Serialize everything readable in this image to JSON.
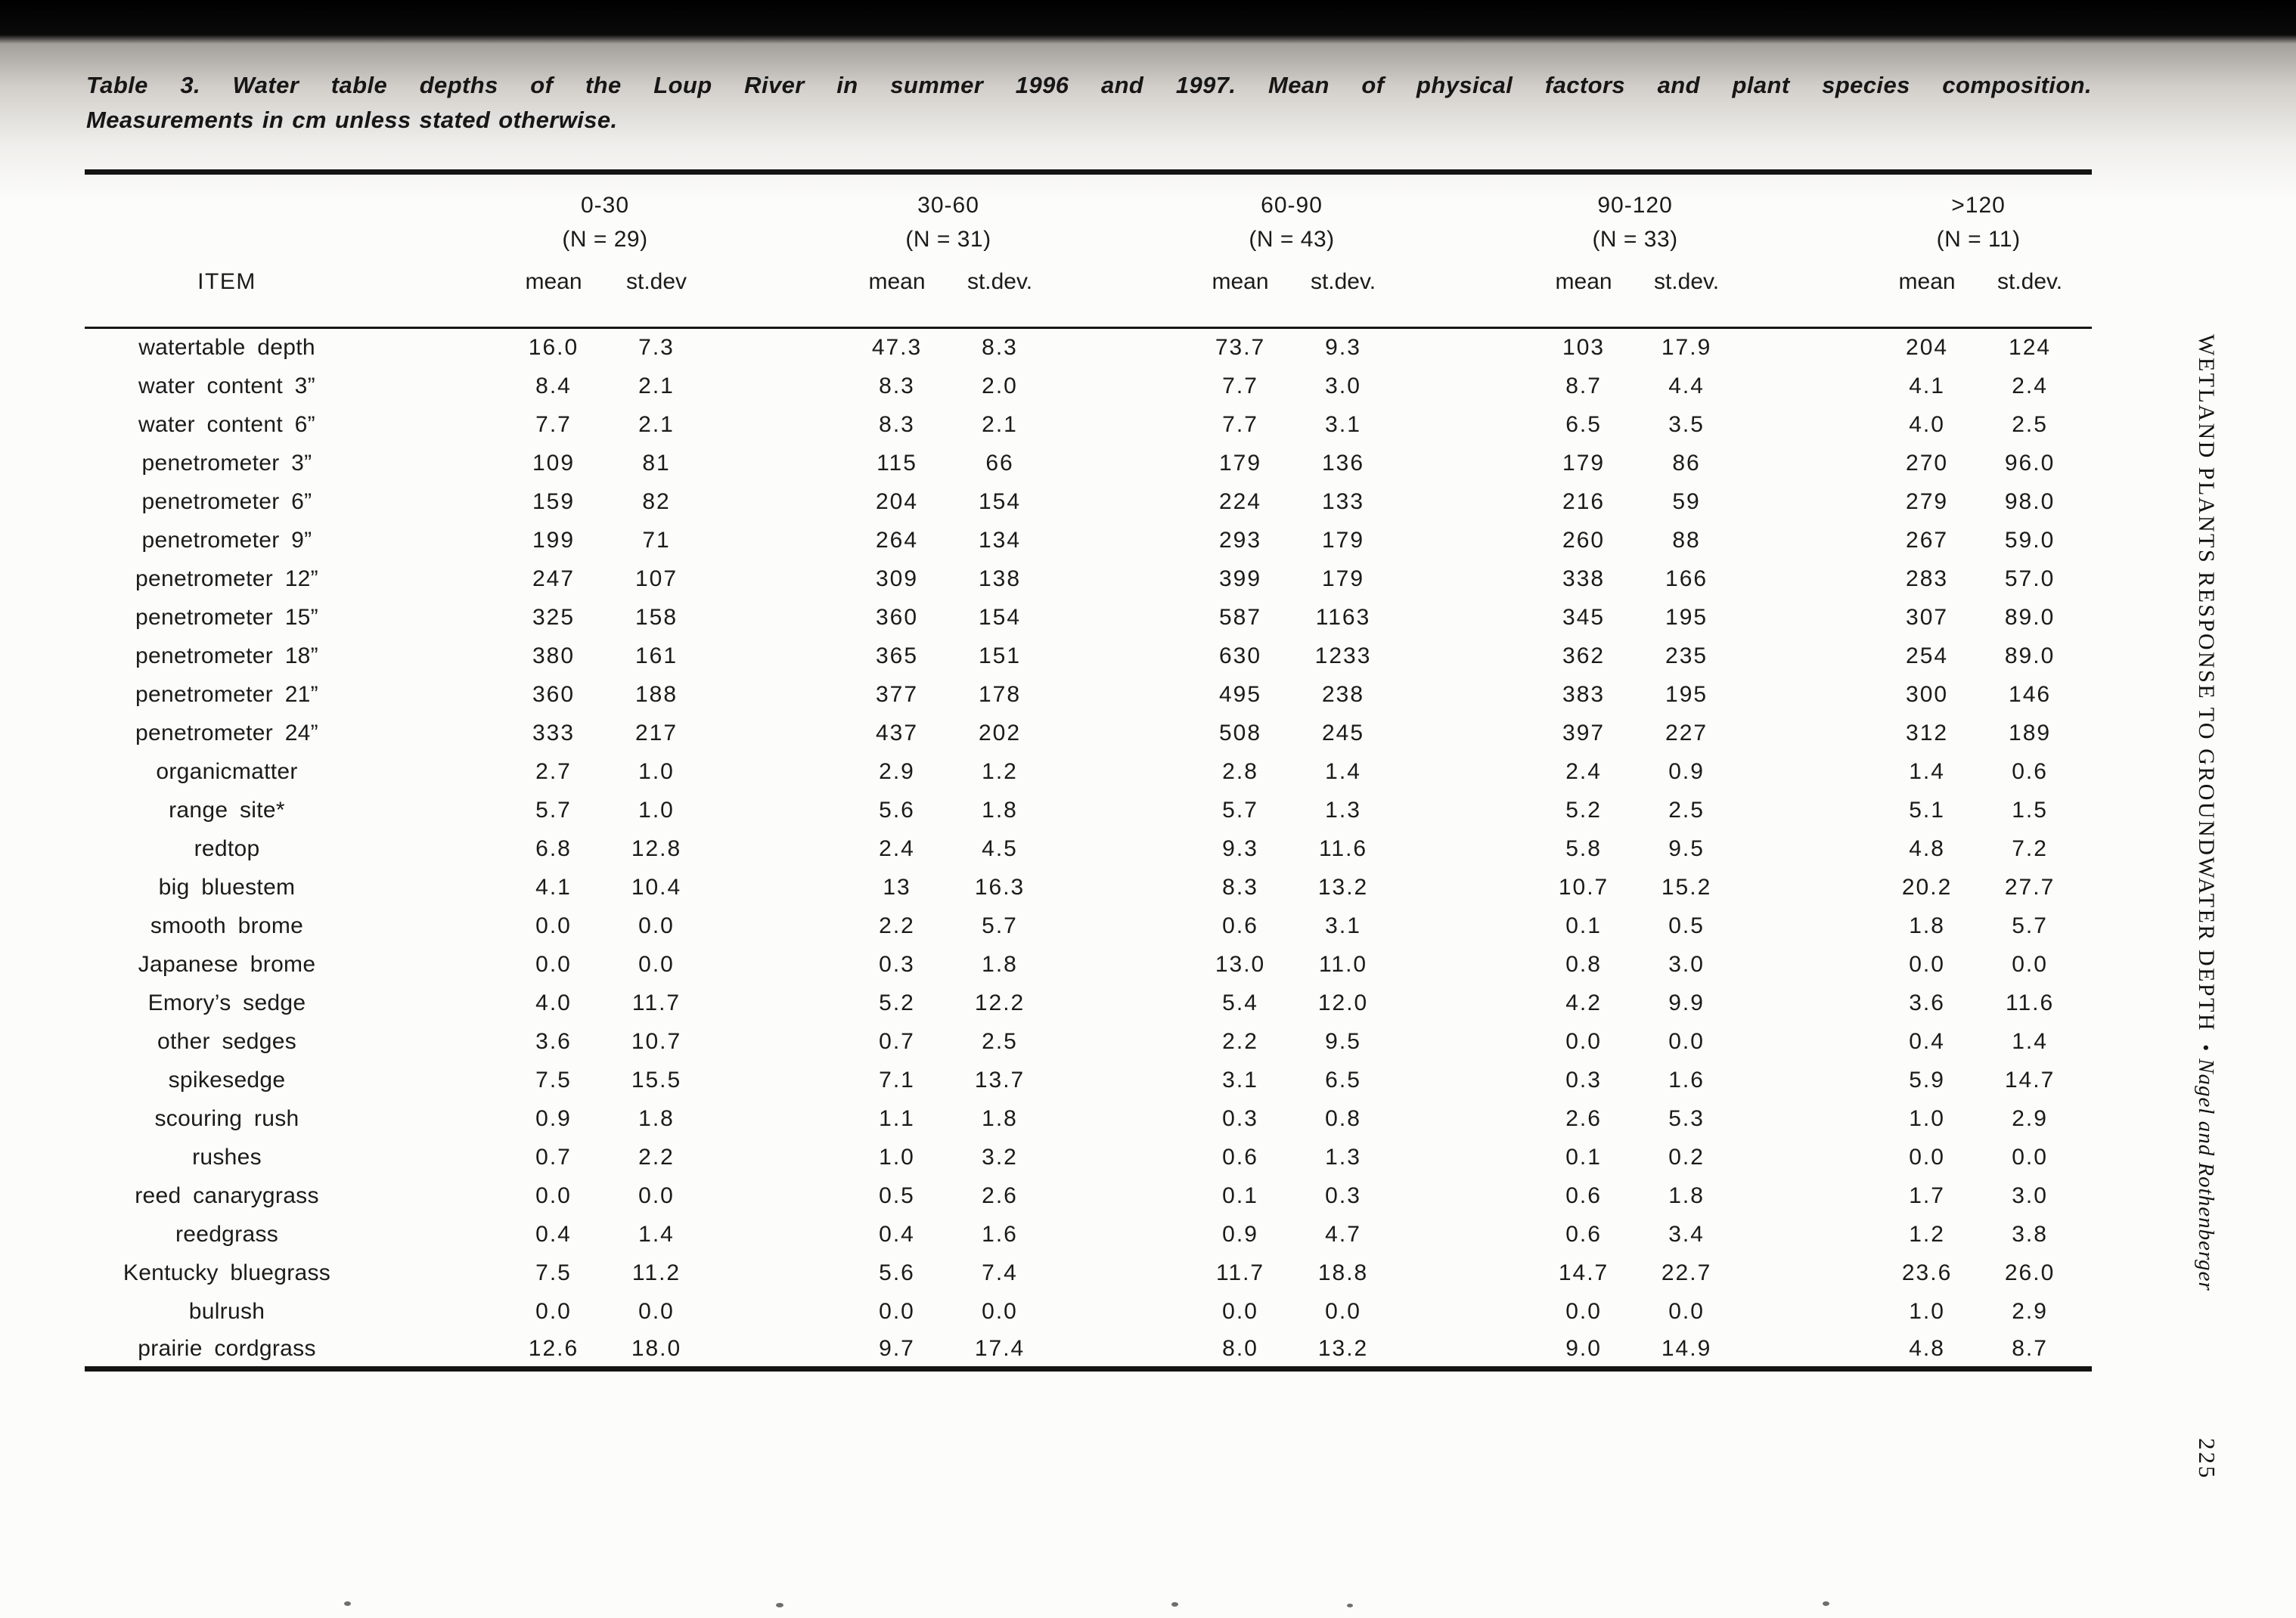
{
  "caption": {
    "line1": "Table 3.  Water table depths of the Loup River in summer 1996 and 1997.  Mean of physical factors and plant species composition.",
    "line2": "Measurements in cm unless stated otherwise."
  },
  "table": {
    "item_header": "ITEM",
    "groups": [
      {
        "range": "0-30",
        "n": "(N = 29)",
        "mean": "mean",
        "stdev": "st.dev"
      },
      {
        "range": "30-60",
        "n": "(N = 31)",
        "mean": "mean",
        "stdev": "st.dev."
      },
      {
        "range": "60-90",
        "n": "(N = 43)",
        "mean": "mean",
        "stdev": "st.dev."
      },
      {
        "range": "90-120",
        "n": "(N = 33)",
        "mean": "mean",
        "stdev": "st.dev."
      },
      {
        "range": ">120",
        "n": "(N = 11)",
        "mean": "mean",
        "stdev": "st.dev."
      }
    ],
    "rows": [
      {
        "item": "watertable depth",
        "values": [
          "16.0",
          "7.3",
          "47.3",
          "8.3",
          "73.7",
          "9.3",
          "103",
          "17.9",
          "204",
          "124"
        ]
      },
      {
        "item": "water content 3”",
        "values": [
          "8.4",
          "2.1",
          "8.3",
          "2.0",
          "7.7",
          "3.0",
          "8.7",
          "4.4",
          "4.1",
          "2.4"
        ]
      },
      {
        "item": "water content 6”",
        "values": [
          "7.7",
          "2.1",
          "8.3",
          "2.1",
          "7.7",
          "3.1",
          "6.5",
          "3.5",
          "4.0",
          "2.5"
        ]
      },
      {
        "item": "penetrometer 3”",
        "values": [
          "109",
          "81",
          "115",
          "66",
          "179",
          "136",
          "179",
          "86",
          "270",
          "96.0"
        ]
      },
      {
        "item": "penetrometer 6”",
        "values": [
          "159",
          "82",
          "204",
          "154",
          "224",
          "133",
          "216",
          "59",
          "279",
          "98.0"
        ]
      },
      {
        "item": "penetrometer 9”",
        "values": [
          "199",
          "71",
          "264",
          "134",
          "293",
          "179",
          "260",
          "88",
          "267",
          "59.0"
        ]
      },
      {
        "item": "penetrometer 12”",
        "values": [
          "247",
          "107",
          "309",
          "138",
          "399",
          "179",
          "338",
          "166",
          "283",
          "57.0"
        ]
      },
      {
        "item": "penetrometer 15”",
        "values": [
          "325",
          "158",
          "360",
          "154",
          "587",
          "1163",
          "345",
          "195",
          "307",
          "89.0"
        ]
      },
      {
        "item": "penetrometer 18”",
        "values": [
          "380",
          "161",
          "365",
          "151",
          "630",
          "1233",
          "362",
          "235",
          "254",
          "89.0"
        ]
      },
      {
        "item": "penetrometer 21”",
        "values": [
          "360",
          "188",
          "377",
          "178",
          "495",
          "238",
          "383",
          "195",
          "300",
          "146"
        ]
      },
      {
        "item": "penetrometer 24”",
        "values": [
          "333",
          "217",
          "437",
          "202",
          "508",
          "245",
          "397",
          "227",
          "312",
          "189"
        ]
      },
      {
        "item": "organicmatter",
        "values": [
          "2.7",
          "1.0",
          "2.9",
          "1.2",
          "2.8",
          "1.4",
          "2.4",
          "0.9",
          "1.4",
          "0.6"
        ]
      },
      {
        "item": "range site*",
        "values": [
          "5.7",
          "1.0",
          "5.6",
          "1.8",
          "5.7",
          "1.3",
          "5.2",
          "2.5",
          "5.1",
          "1.5"
        ]
      },
      {
        "item": "redtop",
        "values": [
          "6.8",
          "12.8",
          "2.4",
          "4.5",
          "9.3",
          "11.6",
          "5.8",
          "9.5",
          "4.8",
          "7.2"
        ]
      },
      {
        "item": "big bluestem",
        "values": [
          "4.1",
          "10.4",
          "13",
          "16.3",
          "8.3",
          "13.2",
          "10.7",
          "15.2",
          "20.2",
          "27.7"
        ]
      },
      {
        "item": "smooth brome",
        "values": [
          "0.0",
          "0.0",
          "2.2",
          "5.7",
          "0.6",
          "3.1",
          "0.1",
          "0.5",
          "1.8",
          "5.7"
        ]
      },
      {
        "item": "Japanese brome",
        "values": [
          "0.0",
          "0.0",
          "0.3",
          "1.8",
          "13.0",
          "11.0",
          "0.8",
          "3.0",
          "0.0",
          "0.0"
        ]
      },
      {
        "item": "Emory’s sedge",
        "values": [
          "4.0",
          "11.7",
          "5.2",
          "12.2",
          "5.4",
          "12.0",
          "4.2",
          "9.9",
          "3.6",
          "11.6"
        ]
      },
      {
        "item": "other sedges",
        "values": [
          "3.6",
          "10.7",
          "0.7",
          "2.5",
          "2.2",
          "9.5",
          "0.0",
          "0.0",
          "0.4",
          "1.4"
        ]
      },
      {
        "item": "spikesedge",
        "values": [
          "7.5",
          "15.5",
          "7.1",
          "13.7",
          "3.1",
          "6.5",
          "0.3",
          "1.6",
          "5.9",
          "14.7"
        ]
      },
      {
        "item": "scouring rush",
        "values": [
          "0.9",
          "1.8",
          "1.1",
          "1.8",
          "0.3",
          "0.8",
          "2.6",
          "5.3",
          "1.0",
          "2.9"
        ]
      },
      {
        "item": "rushes",
        "values": [
          "0.7",
          "2.2",
          "1.0",
          "3.2",
          "0.6",
          "1.3",
          "0.1",
          "0.2",
          "0.0",
          "0.0"
        ]
      },
      {
        "item": "reed canarygrass",
        "values": [
          "0.0",
          "0.0",
          "0.5",
          "2.6",
          "0.1",
          "0.3",
          "0.6",
          "1.8",
          "1.7",
          "3.0"
        ]
      },
      {
        "item": "reedgrass",
        "values": [
          "0.4",
          "1.4",
          "0.4",
          "1.6",
          "0.9",
          "4.7",
          "0.6",
          "3.4",
          "1.2",
          "3.8"
        ]
      },
      {
        "item": "Kentucky bluegrass",
        "values": [
          "7.5",
          "11.2",
          "5.6",
          "7.4",
          "11.7",
          "18.8",
          "14.7",
          "22.7",
          "23.6",
          "26.0"
        ]
      },
      {
        "item": "bulrush",
        "values": [
          "0.0",
          "0.0",
          "0.0",
          "0.0",
          "0.0",
          "0.0",
          "0.0",
          "0.0",
          "1.0",
          "2.9"
        ]
      },
      {
        "item": "prairie cordgrass",
        "values": [
          "12.6",
          "18.0",
          "9.7",
          "17.4",
          "8.0",
          "13.2",
          "9.0",
          "14.9",
          "4.8",
          "8.7"
        ]
      }
    ]
  },
  "margin": {
    "running_head": "WETLAND PLANTS RESPONSE TO GROUNDWATER DEPTH",
    "separator": "•",
    "authors": "Nagel and Rothenberger",
    "page_number": "225"
  }
}
